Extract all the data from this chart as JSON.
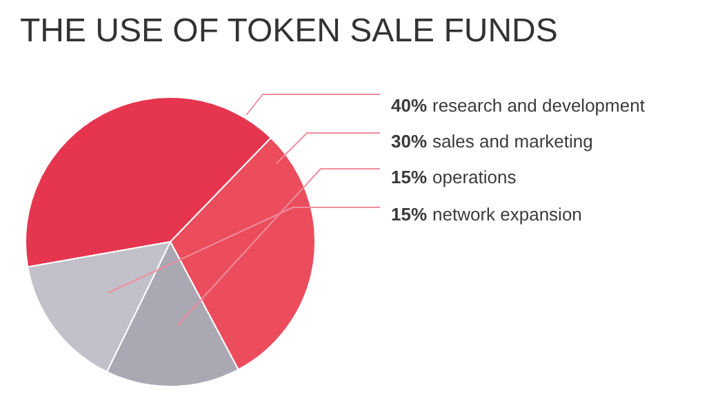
{
  "chart_data": {
    "type": "pie",
    "title": "THE USE OF TOKEN SALE FUNDS",
    "categories": [
      "research and development",
      "sales and marketing",
      "operations",
      "network expansion"
    ],
    "values": [
      40,
      30,
      15,
      15
    ],
    "value_labels": [
      "40%",
      "30%",
      "15%",
      "15%"
    ],
    "colors": [
      "#e6364f",
      "#eb4d5d",
      "#aaa8b3",
      "#c2c0c9"
    ]
  }
}
